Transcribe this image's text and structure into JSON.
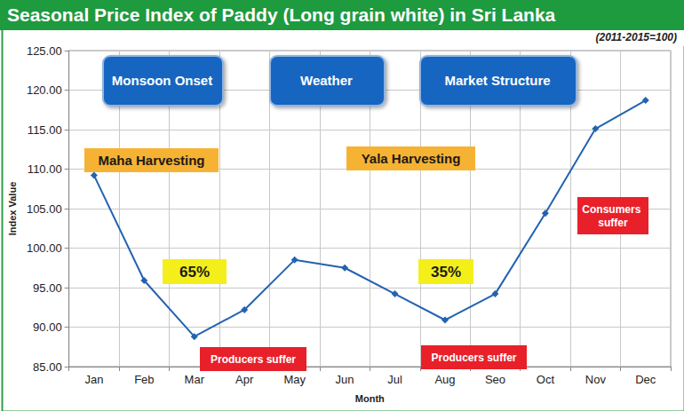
{
  "chart_data": {
    "type": "line",
    "title": "Seasonal Price Index of Paddy (Long grain white) in Sri Lanka",
    "subtitle": "(2011-2015=100)",
    "x_label": "Month",
    "y_label": "Index Value",
    "categories": [
      "Jan",
      "Feb",
      "Mar",
      "Apr",
      "May",
      "Jun",
      "Jul",
      "Aug",
      "Seo",
      "Oct",
      "Nov",
      "Dec"
    ],
    "values": [
      109.2,
      95.9,
      88.8,
      92.2,
      98.5,
      97.5,
      94.2,
      90.9,
      94.2,
      104.4,
      115.1,
      118.7
    ],
    "color": "#2363b0",
    "marker": "diamond",
    "ylim": [
      85,
      125
    ],
    "yticks": [
      {
        "value": 85,
        "label": "85.00"
      },
      {
        "value": 90,
        "label": "90.00"
      },
      {
        "value": 95,
        "label": "95.00"
      },
      {
        "value": 100,
        "label": "100.00"
      },
      {
        "value": 105,
        "label": "105.00"
      },
      {
        "value": 110,
        "label": "110.00"
      },
      {
        "value": 115,
        "label": "115.00"
      },
      {
        "value": 120,
        "label": "120.00"
      },
      {
        "value": 125,
        "label": "125.00"
      }
    ],
    "grid": true,
    "annotations": {
      "drivers": [
        "Monsoon Onset",
        "Weather",
        "Market Structure"
      ],
      "seasons": [
        "Maha Harvesting",
        "Yala Harvesting"
      ],
      "shares": [
        "65%",
        "35%"
      ],
      "impacts": [
        "Producers suffer",
        "Producers suffer",
        "Consumers suffer"
      ]
    }
  }
}
